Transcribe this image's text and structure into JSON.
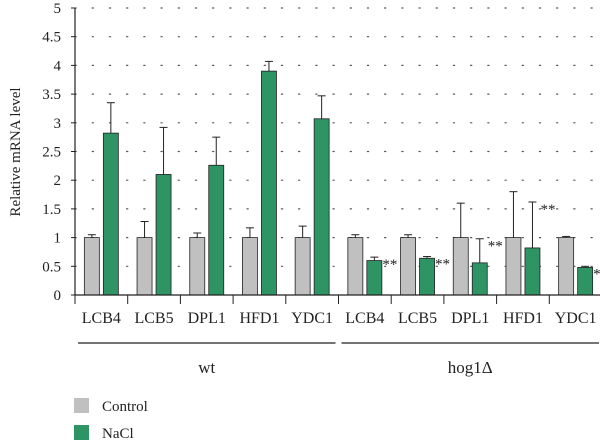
{
  "chart_data": {
    "type": "bar",
    "title": "",
    "ylabel": "Relative mRNA level",
    "xlabel": "",
    "ylim": [
      0,
      5
    ],
    "yticks": [
      "0",
      "0.5",
      "1",
      "1.5",
      "2",
      "2.5",
      "3",
      "3.5",
      "4",
      "4.5",
      "5"
    ],
    "grid": "dotted horizontal",
    "legend_position": "bottom-left",
    "categories": [
      "LCB4",
      "LCB5",
      "DPL1",
      "HFD1",
      "YDC1",
      "LCB4",
      "LCB5",
      "DPL1",
      "HFD1",
      "YDC1"
    ],
    "groups": [
      {
        "label": "wt",
        "categories": [
          "LCB4",
          "LCB5",
          "DPL1",
          "HFD1",
          "YDC1"
        ]
      },
      {
        "label": "hog1Δ",
        "categories": [
          "LCB4",
          "LCB5",
          "DPL1",
          "HFD1",
          "YDC1"
        ]
      }
    ],
    "series": [
      {
        "name": "Control",
        "color": "#c0c0c0",
        "values": [
          1.0,
          1.0,
          1.0,
          1.0,
          1.0,
          1.0,
          1.0,
          1.0,
          1.0,
          1.0
        ],
        "errors": [
          0.05,
          0.28,
          0.08,
          0.17,
          0.2,
          0.05,
          0.05,
          0.6,
          0.8,
          0.02
        ]
      },
      {
        "name": "NaCl",
        "color": "#2e9464",
        "values": [
          2.82,
          2.1,
          2.26,
          3.9,
          3.07,
          0.6,
          0.64,
          0.56,
          0.82,
          0.48
        ],
        "errors": [
          0.53,
          0.82,
          0.49,
          0.17,
          0.4,
          0.06,
          0.03,
          0.42,
          0.8,
          0.02
        ]
      }
    ],
    "annotations": [
      "",
      "",
      "",
      "",
      "",
      "**",
      "**",
      "**",
      "**",
      "**"
    ]
  }
}
